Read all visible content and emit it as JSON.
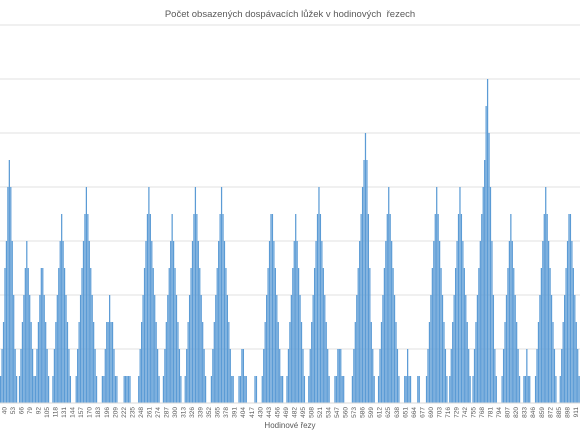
{
  "chart_data": {
    "type": "bar",
    "title": "Počet obsazených dospávacích lůžek v hodinových  řezech",
    "xlabel": "Hodinové řezy",
    "ylabel": "",
    "ylim": [
      0,
      14
    ],
    "grid": true,
    "legend": "none",
    "series_color": "#5B9BD5",
    "tick_labels": [
      "40",
      "53",
      "66",
      "79",
      "92",
      "105",
      "118",
      "131",
      "144",
      "157",
      "170",
      "183",
      "196",
      "209",
      "222",
      "235",
      "248",
      "261",
      "274",
      "287",
      "300",
      "313",
      "326",
      "339",
      "352",
      "365",
      "378",
      "391",
      "404",
      "417",
      "430",
      "443",
      "456",
      "469",
      "482",
      "495",
      "508",
      "521",
      "534",
      "547",
      "560",
      "573",
      "586",
      "599",
      "612",
      "625",
      "638",
      "651",
      "664",
      "677",
      "690",
      "703",
      "716",
      "729",
      "742",
      "755",
      "768",
      "781",
      "794",
      "807",
      "820",
      "833",
      "846",
      "859",
      "872",
      "885",
      "898",
      "911"
    ],
    "values": [
      1,
      2,
      3,
      5,
      6,
      8,
      9,
      8,
      6,
      4,
      2,
      1,
      0,
      1,
      2,
      3,
      4,
      5,
      6,
      5,
      4,
      3,
      2,
      1,
      1,
      2,
      3,
      4,
      5,
      5,
      4,
      3,
      2,
      1,
      0,
      0,
      1,
      2,
      3,
      4,
      5,
      6,
      7,
      6,
      5,
      4,
      3,
      2,
      1,
      0,
      0,
      0,
      1,
      2,
      3,
      4,
      5,
      6,
      7,
      8,
      7,
      6,
      5,
      4,
      3,
      2,
      1,
      0,
      0,
      0,
      1,
      1,
      2,
      3,
      3,
      4,
      3,
      3,
      2,
      1,
      1,
      0,
      0,
      0,
      0,
      1,
      1,
      1,
      1,
      1,
      0,
      0,
      0,
      0,
      0,
      1,
      2,
      3,
      4,
      5,
      6,
      7,
      8,
      7,
      6,
      5,
      4,
      3,
      2,
      1,
      0,
      0,
      1,
      2,
      3,
      4,
      5,
      6,
      7,
      6,
      5,
      4,
      3,
      2,
      1,
      0,
      0,
      1,
      2,
      3,
      4,
      5,
      6,
      7,
      8,
      7,
      6,
      5,
      4,
      3,
      2,
      1,
      0,
      0,
      0,
      1,
      2,
      3,
      4,
      5,
      6,
      7,
      8,
      7,
      6,
      5,
      4,
      3,
      2,
      1,
      1,
      0,
      0,
      0,
      1,
      1,
      2,
      2,
      1,
      1,
      0,
      0,
      0,
      0,
      0,
      1,
      1,
      0,
      0,
      0,
      1,
      2,
      3,
      4,
      5,
      6,
      7,
      7,
      6,
      5,
      4,
      3,
      2,
      1,
      1,
      0,
      0,
      1,
      2,
      3,
      4,
      5,
      6,
      7,
      6,
      5,
      4,
      3,
      2,
      1,
      0,
      0,
      1,
      2,
      3,
      4,
      5,
      6,
      7,
      8,
      7,
      6,
      5,
      4,
      3,
      2,
      1,
      0,
      0,
      0,
      1,
      1,
      2,
      2,
      2,
      1,
      1,
      0,
      0,
      0,
      0,
      0,
      1,
      2,
      3,
      4,
      5,
      6,
      7,
      8,
      9,
      10,
      9,
      7,
      5,
      3,
      2,
      1,
      0,
      0,
      1,
      2,
      3,
      4,
      5,
      6,
      7,
      8,
      7,
      6,
      5,
      4,
      3,
      2,
      1,
      0,
      0,
      0,
      1,
      1,
      2,
      1,
      1,
      0,
      0,
      0,
      0,
      1,
      1,
      0,
      0,
      0,
      0,
      1,
      2,
      3,
      4,
      5,
      6,
      7,
      8,
      7,
      6,
      5,
      4,
      3,
      2,
      1,
      0,
      1,
      2,
      3,
      4,
      5,
      6,
      7,
      8,
      7,
      6,
      5,
      4,
      3,
      2,
      1,
      0,
      1,
      2,
      3,
      4,
      5,
      6,
      7,
      8,
      9,
      11,
      12,
      10,
      8,
      6,
      4,
      2,
      1,
      0,
      0,
      0,
      1,
      2,
      3,
      4,
      5,
      6,
      7,
      6,
      5,
      4,
      3,
      2,
      1,
      0,
      0,
      1,
      1,
      2,
      1,
      1,
      0,
      0,
      0,
      1,
      2,
      3,
      4,
      5,
      6,
      7,
      8,
      7,
      6,
      5,
      4,
      3,
      2,
      1,
      0,
      0,
      1,
      2,
      3,
      4,
      5,
      6,
      7,
      7,
      6,
      5,
      4,
      3,
      2,
      1
    ]
  }
}
